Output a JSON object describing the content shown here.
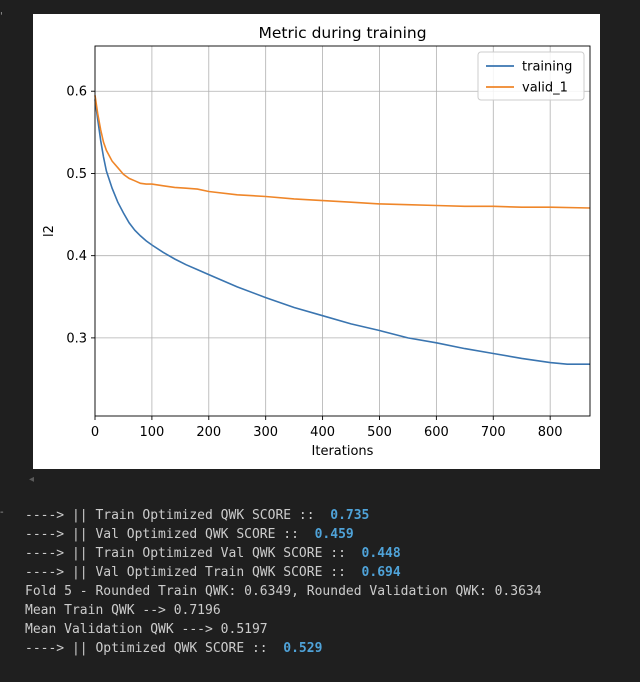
{
  "chart_data": {
    "type": "line",
    "title": "Metric during training",
    "xlabel": "Iterations",
    "ylabel": "l2",
    "xlim": [
      0,
      870
    ],
    "ylim": [
      0.205,
      0.655
    ],
    "xticks": [
      0,
      100,
      200,
      300,
      400,
      500,
      600,
      700,
      800
    ],
    "yticks": [
      0.3,
      0.4,
      0.5,
      0.6
    ],
    "grid": true,
    "legend_position": "upper right",
    "series": [
      {
        "name": "training",
        "color": "#3a75b0",
        "x": [
          0,
          5,
          10,
          15,
          20,
          30,
          40,
          50,
          60,
          70,
          80,
          90,
          100,
          120,
          140,
          160,
          180,
          200,
          250,
          300,
          350,
          400,
          450,
          500,
          550,
          600,
          650,
          700,
          750,
          800,
          830,
          870
        ],
        "y": [
          0.59,
          0.565,
          0.54,
          0.52,
          0.503,
          0.482,
          0.465,
          0.452,
          0.44,
          0.431,
          0.424,
          0.418,
          0.413,
          0.404,
          0.396,
          0.389,
          0.383,
          0.377,
          0.362,
          0.349,
          0.337,
          0.327,
          0.317,
          0.309,
          0.3,
          0.294,
          0.287,
          0.281,
          0.275,
          0.27,
          0.268,
          0.268
        ]
      },
      {
        "name": "valid_1",
        "color": "#ef8629",
        "x": [
          0,
          5,
          10,
          15,
          20,
          30,
          40,
          50,
          60,
          70,
          80,
          90,
          100,
          120,
          140,
          160,
          180,
          200,
          250,
          300,
          350,
          400,
          450,
          500,
          550,
          600,
          650,
          700,
          750,
          800,
          870
        ],
        "y": [
          0.595,
          0.572,
          0.553,
          0.538,
          0.528,
          0.515,
          0.507,
          0.499,
          0.494,
          0.491,
          0.488,
          0.487,
          0.487,
          0.485,
          0.483,
          0.482,
          0.481,
          0.478,
          0.474,
          0.472,
          0.469,
          0.467,
          0.465,
          0.463,
          0.462,
          0.461,
          0.46,
          0.46,
          0.459,
          0.459,
          0.458
        ]
      }
    ]
  },
  "console": [
    [
      {
        "t": "----> || Train Optimized QWK SCORE ::  "
      },
      {
        "t": "0.735",
        "hl": true
      }
    ],
    [
      {
        "t": "----> || Val Optimized QWK SCORE ::  "
      },
      {
        "t": "0.459",
        "hl": true
      }
    ],
    [
      {
        "t": "----> || Train Optimized Val QWK SCORE ::  "
      },
      {
        "t": "0.448",
        "hl": true
      }
    ],
    [
      {
        "t": "----> || Val Optimized Train QWK SCORE ::  "
      },
      {
        "t": "0.694",
        "hl": true
      }
    ],
    [
      {
        "t": "Fold 5 - Rounded Train QWK: 0.6349, Rounded Validation QWK: 0.3634"
      }
    ],
    [
      {
        "t": "Mean Train QWK --> 0.7196"
      }
    ],
    [
      {
        "t": "Mean Validation QWK ---> 0.5197"
      }
    ],
    [
      {
        "t": "----> || Optimized QWK SCORE ::  "
      },
      {
        "t": "0.529",
        "hl": true
      }
    ]
  ]
}
